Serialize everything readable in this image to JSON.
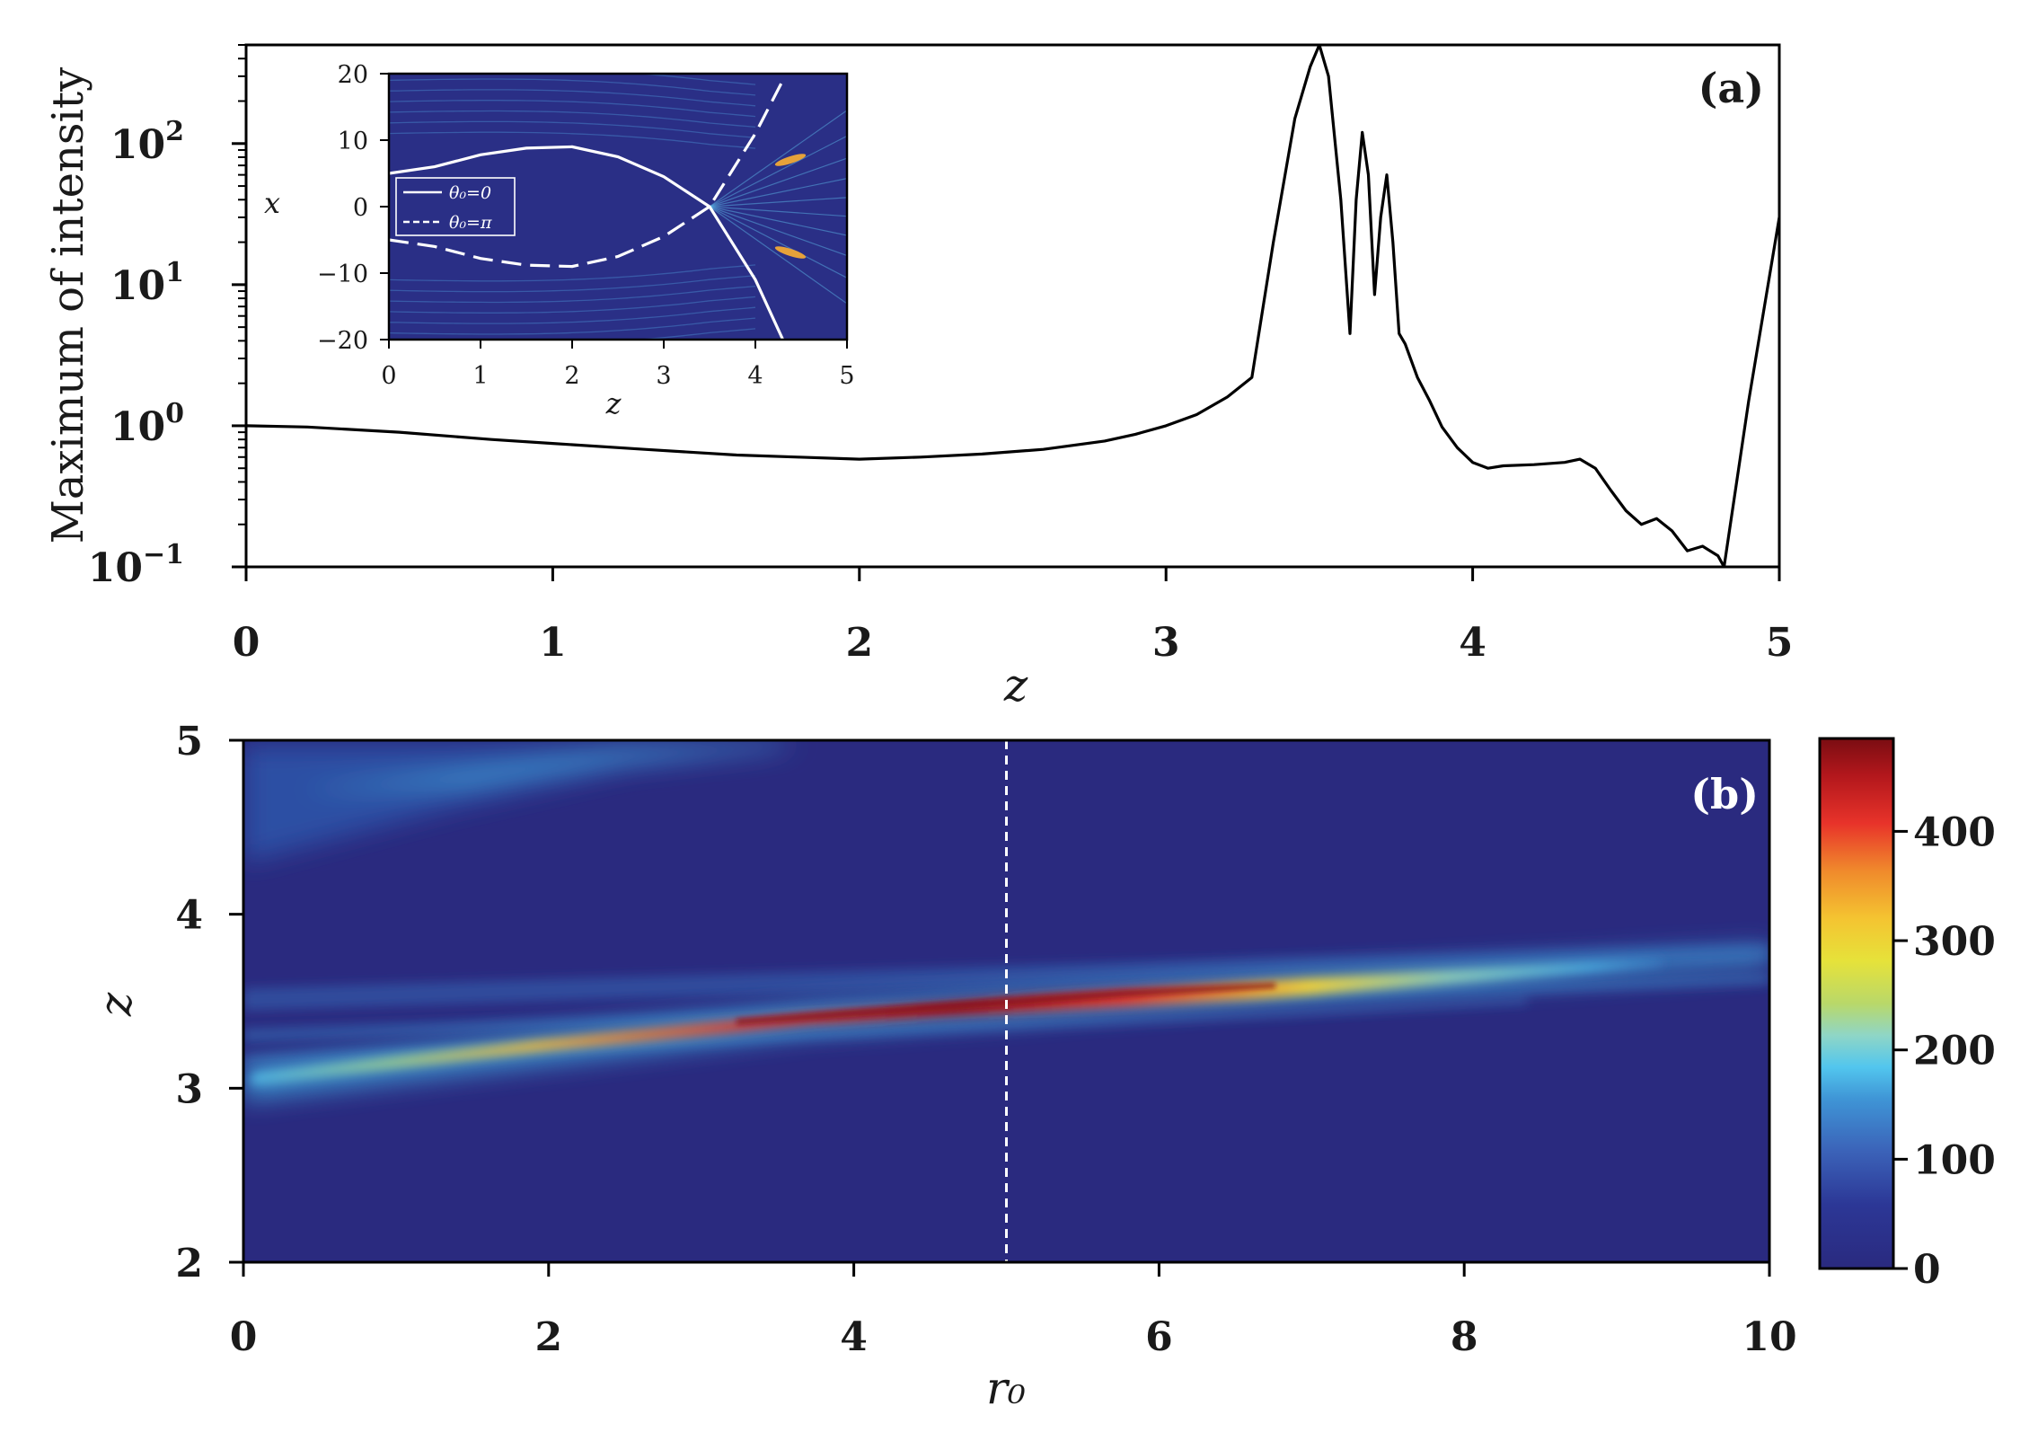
{
  "chart_data": [
    {
      "id": "a",
      "type": "line",
      "panel_label": "(a)",
      "xlabel": "z",
      "ylabel": "Maximum of intensity",
      "yscale": "log",
      "xlim": [
        0,
        5
      ],
      "ylim": [
        0.1,
        500
      ],
      "xticks": [
        "0",
        "1",
        "2",
        "3",
        "4",
        "5"
      ],
      "yticks": [
        {
          "base": "10",
          "exp": "−1",
          "value": 0.1
        },
        {
          "base": "10",
          "exp": "0",
          "value": 1
        },
        {
          "base": "10",
          "exp": "1",
          "value": 10
        },
        {
          "base": "10",
          "exp": "2",
          "value": 100
        }
      ],
      "series": [
        {
          "name": "max intensity",
          "color": "#000000",
          "x": [
            0,
            0.2,
            0.5,
            0.8,
            1.0,
            1.3,
            1.6,
            1.8,
            2.0,
            2.2,
            2.4,
            2.6,
            2.8,
            2.9,
            3.0,
            3.1,
            3.2,
            3.28,
            3.35,
            3.42,
            3.47,
            3.5,
            3.53,
            3.57,
            3.6,
            3.62,
            3.64,
            3.66,
            3.68,
            3.7,
            3.72,
            3.74,
            3.76,
            3.78,
            3.82,
            3.86,
            3.9,
            3.95,
            4.0,
            4.05,
            4.1,
            4.2,
            4.3,
            4.35,
            4.4,
            4.45,
            4.5,
            4.55,
            4.6,
            4.65,
            4.7,
            4.75,
            4.8,
            4.82,
            4.9,
            5.0
          ],
          "y": [
            1.0,
            0.98,
            0.9,
            0.8,
            0.75,
            0.68,
            0.62,
            0.6,
            0.58,
            0.6,
            0.63,
            0.68,
            0.78,
            0.87,
            1.0,
            1.2,
            1.6,
            2.2,
            20,
            150,
            350,
            500,
            300,
            40,
            4.5,
            40,
            120,
            60,
            8.5,
            30,
            60,
            20,
            4.5,
            3.8,
            2.2,
            1.5,
            0.98,
            0.7,
            0.55,
            0.5,
            0.52,
            0.53,
            0.55,
            0.58,
            0.5,
            0.35,
            0.25,
            0.2,
            0.22,
            0.18,
            0.13,
            0.14,
            0.12,
            0.1,
            1.5,
            30
          ]
        }
      ],
      "inset": {
        "xlabel": "z",
        "ylabel": "x",
        "xlim": [
          0,
          5
        ],
        "ylim": [
          -20,
          20
        ],
        "xticks": [
          "0",
          "1",
          "2",
          "3",
          "4",
          "5"
        ],
        "yticks": [
          "−20",
          "−10",
          "0",
          "10",
          "20"
        ],
        "legend": [
          {
            "label": "θ₀=0",
            "style": "solid"
          },
          {
            "label": "θ₀=π",
            "style": "dashed"
          }
        ],
        "curves": [
          {
            "name": "θ₀=0",
            "style": "solid",
            "x": [
              0,
              0.5,
              1.0,
              1.5,
              2.0,
              2.5,
              3.0,
              3.5,
              4.0,
              4.3
            ],
            "y": [
              5,
              6,
              7.8,
              8.8,
              9.0,
              7.5,
              4.5,
              0,
              -11,
              -20
            ]
          },
          {
            "name": "θ₀=π",
            "style": "dashed",
            "x": [
              0,
              0.5,
              1.0,
              1.5,
              2.0,
              2.5,
              3.0,
              3.5,
              4.0,
              4.3
            ],
            "y": [
              -5,
              -6,
              -7.8,
              -8.8,
              -9.0,
              -7.5,
              -4.5,
              0,
              11,
              19
            ]
          }
        ]
      }
    },
    {
      "id": "b",
      "type": "heatmap",
      "panel_label": "(b)",
      "xlabel": "r₀",
      "ylabel": "z",
      "xlim": [
        0,
        10
      ],
      "ylim": [
        2,
        5
      ],
      "xticks": [
        "0",
        "2",
        "4",
        "6",
        "8",
        "10"
      ],
      "yticks": [
        "2",
        "3",
        "4",
        "5"
      ],
      "marker_line_x": 5,
      "colorbar": {
        "min": 0,
        "max": 485,
        "ticks": [
          "0",
          "100",
          "200",
          "300",
          "400"
        ],
        "colormap": "jet"
      },
      "ridge": {
        "z_center_at_r0_0": 3.12,
        "z_center_at_r0_10": 3.78,
        "peak_r0": 5,
        "peak_value": 485
      }
    }
  ],
  "colors": {
    "background": "#ffffff",
    "heatmap_low": "#2a2a7f",
    "marker_line": "#ffffff"
  }
}
